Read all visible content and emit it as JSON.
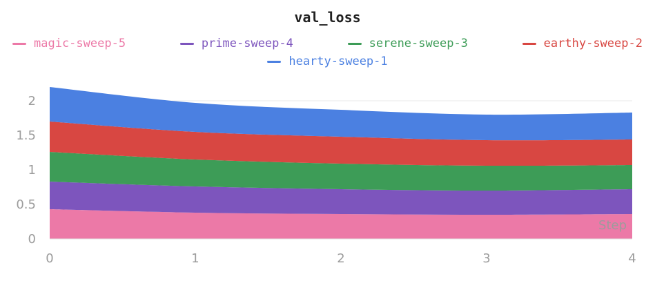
{
  "page": {
    "background": "#ffffff"
  },
  "chart_data": {
    "type": "area",
    "stacked": true,
    "title": "val_loss",
    "xlabel": "Step",
    "ylabel": "",
    "x": [
      0,
      1,
      2,
      3,
      4
    ],
    "x_tick_labels": [
      "0",
      "1",
      "2",
      "3",
      "4"
    ],
    "y_tick_values": [
      0,
      0.5,
      1,
      1.5,
      2
    ],
    "y_tick_labels": [
      "0",
      "0.5",
      "1",
      "1.5",
      "2"
    ],
    "xlim": [
      0,
      4
    ],
    "ylim": [
      0,
      2.3
    ],
    "grid": "horizontal",
    "legend_position": "top",
    "colors": {
      "grid": "#e8e8e8",
      "tick_text": "#9c9c9c",
      "axis_label_text": "#9c9c9c",
      "title_text": "#212121"
    },
    "series": [
      {
        "name": "magic-sweep-5",
        "color": "#ec79a7",
        "values": [
          0.43,
          0.38,
          0.36,
          0.35,
          0.36
        ]
      },
      {
        "name": "prime-sweep-4",
        "color": "#7d55bd",
        "values": [
          0.4,
          0.38,
          0.36,
          0.35,
          0.36
        ]
      },
      {
        "name": "serene-sweep-3",
        "color": "#3d9c57",
        "values": [
          0.43,
          0.39,
          0.37,
          0.36,
          0.35
        ]
      },
      {
        "name": "earthy-sweep-2",
        "color": "#d84742",
        "values": [
          0.44,
          0.4,
          0.39,
          0.37,
          0.37
        ]
      },
      {
        "name": "hearty-sweep-1",
        "color": "#4b80e1",
        "values": [
          0.5,
          0.42,
          0.39,
          0.37,
          0.39
        ]
      }
    ],
    "stack_totals": [
      2.2,
      1.97,
      1.87,
      1.8,
      1.83
    ]
  }
}
